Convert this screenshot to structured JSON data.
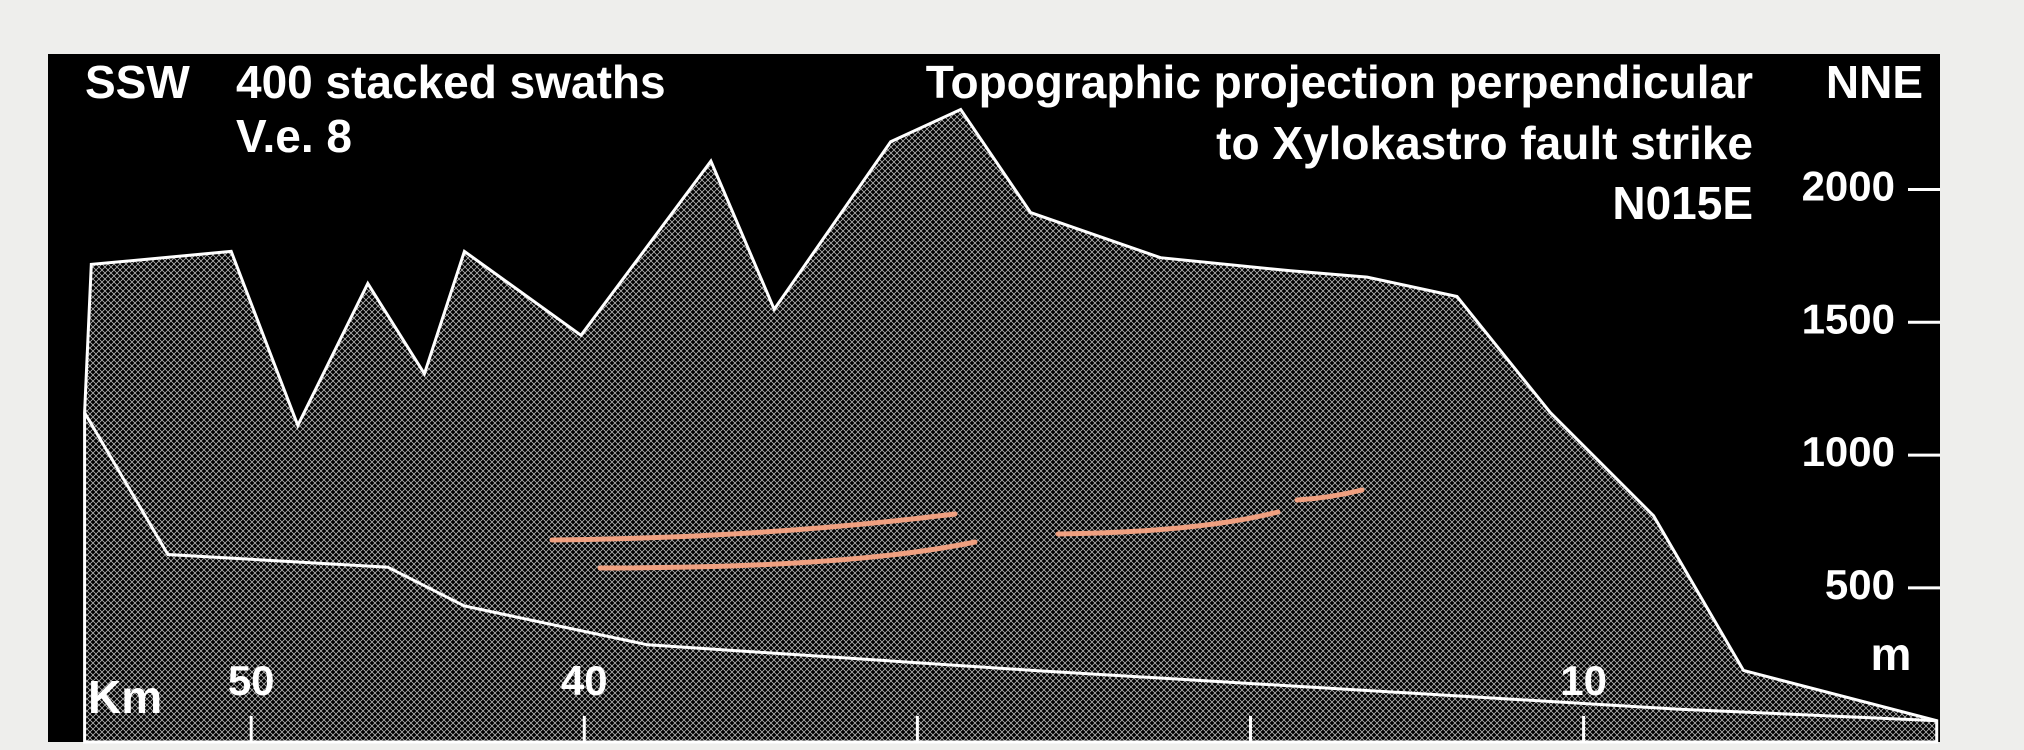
{
  "chart_data": {
    "type": "area",
    "labels_left": [
      "SSW",
      "400 stacked swaths",
      "V.e. 8"
    ],
    "title_lines": [
      "Topographic projection perpendicular",
      "to Xylokastro fault strike",
      "N015E"
    ],
    "right_label": "NNE",
    "xlabel": "Km",
    "ylabel": "m",
    "xlim": [
      56.1,
      -0.7
    ],
    "ylim": [
      -80,
      2510
    ],
    "xticks": [
      50,
      40,
      {
        "value": 30,
        "label": null
      },
      {
        "value": 20,
        "label": null
      },
      10
    ],
    "yticks": [
      500,
      1000,
      1500,
      2000
    ],
    "series": [
      {
        "color": "#ffffff",
        "x": [
          55.0,
          54.8,
          50.6,
          48.6,
          46.5,
          44.8,
          43.6,
          40.1,
          36.2,
          34.3,
          30.8,
          28.7,
          26.6,
          22.7,
          18.8,
          16.5,
          13.8,
          11.0,
          7.9,
          5.2,
          -0.6
        ],
        "values": [
          1160,
          1718,
          1767,
          1112,
          1646,
          1306,
          1767,
          1451,
          2107,
          1549,
          2180,
          2301,
          1913,
          1743,
          1694,
          1670,
          1597,
          1160,
          772,
          189,
          0
        ]
      },
      {
        "color": "#ffffff",
        "x": [
          55.0,
          52.5,
          45.9,
          43.6,
          38.1,
          26.5,
          7.2,
          -0.6
        ],
        "values": [
          1160,
          626,
          578,
          432,
          286,
          189,
          44,
          0
        ]
      }
    ]
  }
}
